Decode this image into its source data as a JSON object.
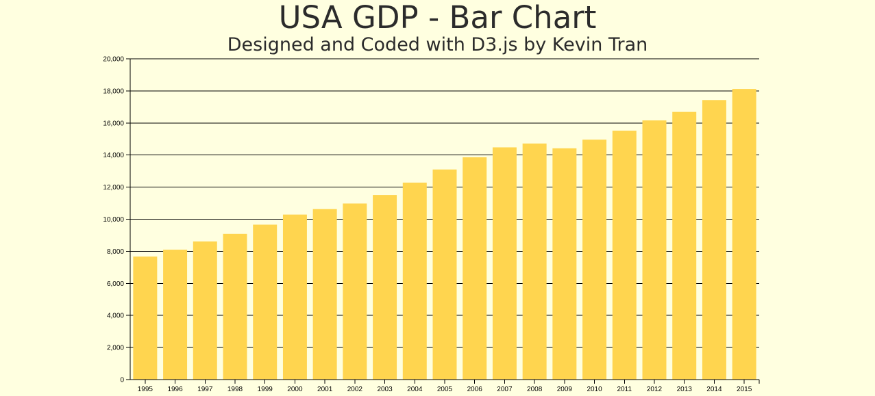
{
  "header": {
    "title": "USA GDP - Bar Chart",
    "subtitle": "Designed and Coded with D3.js by Kevin Tran"
  },
  "colors": {
    "background": "#ffffe0",
    "bar": "#ffd54f",
    "gridline": "#000000",
    "text": "#2b2b2b"
  },
  "chart_data": {
    "type": "bar",
    "title": "USA GDP - Bar Chart",
    "subtitle": "Designed and Coded with D3.js by Kevin Tran",
    "xlabel": "",
    "ylabel": "",
    "categories": [
      "1995",
      "1996",
      "1997",
      "1998",
      "1999",
      "2000",
      "2001",
      "2002",
      "2003",
      "2004",
      "2005",
      "2006",
      "2007",
      "2008",
      "2009",
      "2010",
      "2011",
      "2012",
      "2013",
      "2014",
      "2015"
    ],
    "values": [
      7670,
      8100,
      8610,
      9090,
      9660,
      10290,
      10630,
      10980,
      11510,
      12280,
      13100,
      13860,
      14480,
      14720,
      14420,
      14960,
      15520,
      16160,
      16690,
      17430,
      18120
    ],
    "ylim": [
      0,
      20000
    ],
    "yticks": [
      0,
      2000,
      4000,
      6000,
      8000,
      10000,
      12000,
      14000,
      16000,
      18000,
      20000
    ],
    "ytick_labels": [
      "0",
      "2,000",
      "4,000",
      "6,000",
      "8,000",
      "10,000",
      "12,000",
      "14,000",
      "16,000",
      "18,000",
      "20,000"
    ],
    "grid": true,
    "legend": "none"
  }
}
